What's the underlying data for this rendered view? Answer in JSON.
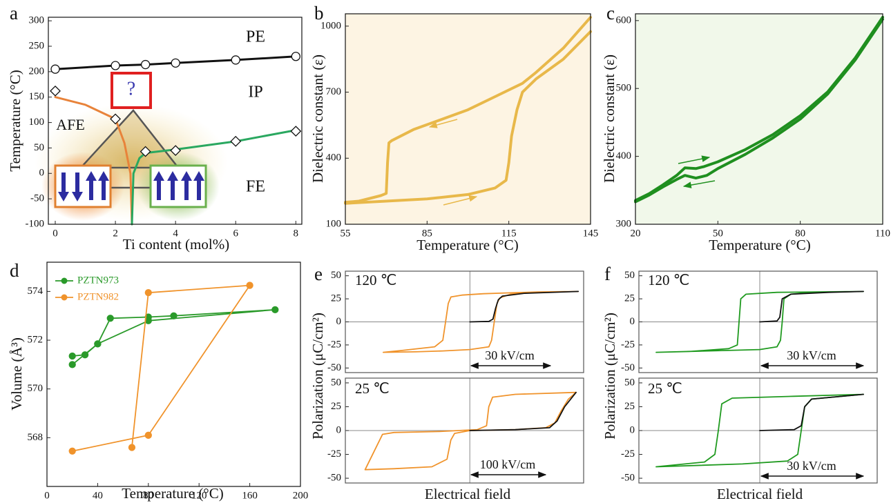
{
  "chart_data": [
    {
      "type": "line",
      "panel": "a",
      "xlabel": "Ti content (mol%)",
      "ylabel": "Temperature (°C)",
      "xlim": [
        -0.23,
        8.2
      ],
      "ylim": [
        -100,
        307
      ],
      "xticks": [
        0,
        2,
        4,
        6,
        8
      ],
      "yticks": [
        -100,
        -50,
        0,
        50,
        100,
        150,
        200,
        250,
        300
      ],
      "annotations": [
        "PE",
        "IP",
        "AFE",
        "FE",
        "?"
      ],
      "series": [
        {
          "color": "#111111",
          "marker": "circle",
          "x": [
            0,
            2,
            3,
            4,
            6,
            8
          ],
          "values": [
            205,
            212,
            214,
            217,
            223,
            230
          ]
        },
        {
          "color": "#e8833a",
          "x": [
            0,
            1,
            2,
            2.3,
            2.5,
            2.55
          ],
          "values": [
            150,
            135,
            107,
            60,
            0,
            -100
          ]
        },
        {
          "color": "#2aa860",
          "x": [
            2.55,
            2.6,
            2.8,
            3,
            4,
            6,
            8
          ],
          "values": [
            -100,
            0,
            30,
            40,
            47,
            63,
            85
          ]
        },
        {
          "color": "#111111",
          "marker": "diamond",
          "line": false,
          "x": [
            0,
            2,
            3,
            4,
            6,
            8
          ],
          "values": [
            162,
            107,
            43,
            45,
            63,
            83
          ]
        }
      ]
    },
    {
      "type": "line",
      "panel": "b",
      "xlabel": "Temperature (°C)",
      "ylabel": "Dielectric constant (ε)",
      "plot_background": "#fdf4e3",
      "xlim": [
        55,
        145
      ],
      "ylim": [
        100,
        1056
      ],
      "xticks": [
        55,
        85,
        115,
        145
      ],
      "yticks": [
        100,
        400,
        700,
        1000
      ],
      "series": [
        {
          "color": "#e8b84a",
          "x": [
            55,
            70,
            85,
            100,
            110,
            114,
            115,
            116,
            118,
            120,
            125,
            135,
            145
          ],
          "values": [
            195,
            205,
            215,
            235,
            265,
            300,
            380,
            500,
            620,
            700,
            760,
            850,
            975
          ]
        },
        {
          "color": "#e8b84a",
          "x": [
            145,
            135,
            125,
            120,
            110,
            100,
            90,
            80,
            72,
            71,
            70.5,
            70,
            68,
            60,
            55
          ],
          "values": [
            1040,
            900,
            790,
            740,
            680,
            620,
            575,
            530,
            480,
            470,
            380,
            240,
            230,
            205,
            200
          ]
        }
      ]
    },
    {
      "type": "line",
      "panel": "c",
      "xlabel": "Temperature (°C)",
      "ylabel": "Dielectric constant (ε)",
      "plot_background": "#f1f8ea",
      "xlim": [
        20,
        110
      ],
      "ylim": [
        300,
        610
      ],
      "xticks": [
        20,
        50,
        80,
        110
      ],
      "yticks": [
        300,
        400,
        500,
        600
      ],
      "series": [
        {
          "color": "#1f8f1f",
          "x": [
            20,
            25,
            30,
            35,
            38,
            42,
            45,
            50,
            60,
            70,
            80,
            90,
            100,
            110
          ],
          "values": [
            335,
            345,
            358,
            372,
            383,
            382,
            385,
            392,
            410,
            432,
            460,
            495,
            545,
            605
          ]
        },
        {
          "color": "#1f8f1f",
          "x": [
            20,
            25,
            30,
            35,
            38,
            42,
            46,
            50,
            60,
            70,
            80,
            90,
            100,
            110
          ],
          "values": [
            333,
            343,
            355,
            366,
            372,
            368,
            372,
            382,
            403,
            427,
            455,
            492,
            542,
            602
          ]
        }
      ]
    },
    {
      "type": "line",
      "panel": "d",
      "xlabel": "Temperature (°C)",
      "ylabel": "Volume (Å³)",
      "legend": "upper left",
      "xlim": [
        0,
        200
      ],
      "ylim": [
        566.0,
        575.2
      ],
      "xticks": [
        0,
        40,
        80,
        120,
        160,
        200
      ],
      "yticks": [
        568,
        570,
        572,
        574
      ],
      "series": [
        {
          "name": "PZTN973",
          "color": "#2a9a2a",
          "marker": "circle",
          "x": [
            20,
            30,
            40,
            50,
            80,
            100,
            180,
            80,
            40,
            20
          ],
          "values": [
            571.35,
            571.4,
            571.85,
            572.9,
            572.95,
            573.0,
            573.25,
            572.8,
            571.85,
            571.0
          ]
        },
        {
          "name": "PZTN982",
          "color": "#f0932b",
          "marker": "circle",
          "x": [
            20,
            80,
            160,
            80,
            67
          ],
          "values": [
            567.45,
            568.1,
            574.25,
            573.95,
            567.6
          ]
        }
      ]
    },
    {
      "type": "line",
      "panel": "e",
      "ylabel": "Polarization (μC/cm²)",
      "zero_lines": true,
      "xlim": [
        -46,
        42
      ],
      "ylim": [
        -55,
        55
      ],
      "yticks": [
        -50,
        -25,
        0,
        25,
        50
      ],
      "annotations": [
        "120 ℃",
        "30 kV/cm"
      ],
      "series": [
        {
          "color": "#f0932b",
          "x": [
            40,
            25,
            15,
            5,
            -3,
            -7,
            -8,
            -9,
            -10,
            -13,
            -25,
            -32,
            -20,
            -10,
            0,
            7,
            8,
            9,
            10,
            11,
            15,
            25,
            40
          ],
          "values": [
            33,
            32.5,
            31.5,
            30.5,
            29,
            27,
            20,
            0,
            -20,
            -27,
            -31,
            -33,
            -32.5,
            -31.5,
            -30,
            -27,
            -20,
            0,
            20,
            26,
            30,
            32,
            33
          ]
        },
        {
          "color": "#111111",
          "x": [
            0,
            7,
            8.5,
            9.5,
            10.5,
            12,
            20,
            40
          ],
          "values": [
            0,
            0.5,
            3,
            15,
            24,
            28,
            31,
            33
          ]
        }
      ]
    },
    {
      "type": "line",
      "xlabel": "Electrical field",
      "zero_lines": true,
      "xlim": [
        -164,
        150
      ],
      "ylim": [
        -55,
        55
      ],
      "yticks": [
        -50,
        -25,
        0,
        25,
        50
      ],
      "annotations": [
        "25 ℃",
        "100 kV/cm"
      ],
      "series": [
        {
          "color": "#f0932b",
          "x": [
            140,
            60,
            30,
            25,
            22,
            10,
            -40,
            -100,
            -115,
            -138,
            -100,
            -50,
            -30,
            -25,
            -20,
            0,
            60,
            100,
            112,
            120,
            130,
            140
          ],
          "values": [
            40,
            38,
            35,
            25,
            5,
            1,
            -1,
            -2,
            -4,
            -41,
            -40,
            -38,
            -30,
            -10,
            -3,
            0,
            1,
            3,
            8,
            20,
            33,
            40
          ]
        },
        {
          "color": "#111111",
          "x": [
            0,
            60,
            105,
            115,
            125,
            140
          ],
          "values": [
            0,
            1,
            3,
            10,
            25,
            40
          ]
        }
      ]
    },
    {
      "type": "line",
      "panel": "f",
      "ylabel": "Polarization (μC/cm²)",
      "zero_lines": true,
      "xlim": [
        -35,
        34
      ],
      "ylim": [
        -55,
        55
      ],
      "yticks": [
        -50,
        -25,
        0,
        25,
        50
      ],
      "annotations": [
        "120 ℃",
        "30 kV/cm"
      ],
      "series": [
        {
          "color": "#1f9a1f",
          "x": [
            30,
            5,
            -4,
            -5.5,
            -6,
            -6.5,
            -9,
            -20,
            -30,
            0,
            5,
            6,
            6.5,
            7,
            9,
            15,
            30
          ],
          "values": [
            33,
            32,
            30,
            25,
            0,
            -25,
            -29,
            -32,
            -33,
            -30,
            -27,
            -20,
            0,
            25,
            30,
            32,
            33
          ]
        },
        {
          "color": "#111111",
          "x": [
            0,
            5,
            5.8,
            6.5,
            9,
            20,
            30
          ],
          "values": [
            0,
            1,
            5,
            25,
            30,
            32,
            33
          ]
        }
      ]
    },
    {
      "type": "line",
      "xlabel": "Electrical field",
      "zero_lines": true,
      "xlim": [
        -35,
        34
      ],
      "ylim": [
        -55,
        55
      ],
      "yticks": [
        -50,
        -25,
        0,
        25,
        50
      ],
      "annotations": [
        "25 ℃",
        "30 kV/cm"
      ],
      "series": [
        {
          "color": "#1f9a1f",
          "x": [
            30,
            10,
            -8,
            -11,
            -12,
            -13,
            -16,
            -30,
            -5,
            8,
            11,
            12,
            13,
            15,
            30
          ],
          "values": [
            38,
            36,
            34,
            28,
            0,
            -25,
            -33,
            -38,
            -35,
            -32,
            -25,
            0,
            25,
            33,
            38
          ]
        },
        {
          "color": "#111111",
          "x": [
            0,
            10,
            12,
            13,
            15,
            30
          ],
          "values": [
            0,
            1,
            5,
            25,
            33,
            38
          ]
        }
      ]
    }
  ]
}
